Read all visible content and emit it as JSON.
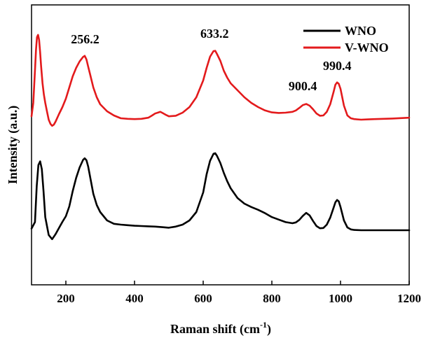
{
  "chart_data": {
    "type": "line",
    "xlabel": "Raman shift (cm",
    "xlabel_sup": "-1",
    "xlabel_close": ")",
    "ylabel": "Intensity (a.u.)",
    "xlim": [
      100,
      1200
    ],
    "ylim": [
      0,
      100
    ],
    "x_ticks": [
      200,
      400,
      600,
      800,
      1000,
      1200
    ],
    "y_ticks_shown": false,
    "legend": {
      "placement": "top-right"
    },
    "grid": false,
    "series": [
      {
        "name": "WNO",
        "color": "#000000",
        "x": [
          100,
          110,
          115,
          120,
          125,
          130,
          135,
          140,
          150,
          160,
          170,
          180,
          190,
          200,
          210,
          220,
          230,
          240,
          250,
          255,
          260,
          265,
          270,
          280,
          290,
          300,
          320,
          340,
          360,
          380,
          400,
          420,
          440,
          460,
          480,
          500,
          520,
          540,
          560,
          580,
          600,
          610,
          620,
          630,
          635,
          640,
          650,
          660,
          670,
          680,
          700,
          720,
          740,
          760,
          780,
          800,
          820,
          840,
          860,
          870,
          880,
          890,
          900,
          910,
          920,
          930,
          940,
          950,
          960,
          970,
          980,
          985,
          990,
          995,
          1000,
          1010,
          1020,
          1030,
          1040,
          1060,
          1080,
          1100,
          1150,
          1200
        ],
        "values": [
          20.1,
          22.4,
          35.2,
          42.8,
          44.1,
          41.3,
          33.5,
          24.2,
          17.8,
          16.3,
          18.1,
          20.3,
          22.5,
          24.5,
          28.0,
          33.5,
          38.2,
          41.9,
          44.6,
          45.2,
          44.5,
          42.3,
          39.0,
          32.5,
          28.5,
          26.0,
          23.0,
          21.8,
          21.5,
          21.3,
          21.1,
          21.0,
          20.9,
          20.8,
          20.6,
          20.4,
          20.8,
          21.5,
          23.0,
          26.0,
          33.0,
          39.5,
          44.3,
          46.8,
          47.0,
          46.1,
          43.5,
          40.0,
          37.0,
          34.5,
          31.0,
          29.0,
          27.8,
          26.8,
          25.6,
          24.2,
          23.3,
          22.4,
          22.0,
          22.3,
          23.2,
          24.6,
          25.7,
          24.8,
          22.8,
          21.0,
          20.2,
          20.3,
          21.5,
          24.0,
          27.6,
          29.5,
          30.3,
          29.8,
          27.8,
          23.0,
          20.5,
          19.8,
          19.6,
          19.5,
          19.5,
          19.5,
          19.5,
          19.5
        ]
      },
      {
        "name": "V-WNO",
        "color": "#e31a1c",
        "x": [
          100,
          105,
          110,
          113,
          116,
          119,
          122,
          125,
          128,
          132,
          136,
          140,
          145,
          150,
          155,
          160,
          165,
          170,
          180,
          190,
          200,
          210,
          220,
          230,
          240,
          250,
          255,
          260,
          265,
          270,
          280,
          290,
          300,
          320,
          340,
          360,
          380,
          400,
          420,
          440,
          450,
          460,
          470,
          475,
          480,
          490,
          500,
          520,
          540,
          560,
          580,
          600,
          610,
          620,
          630,
          635,
          640,
          650,
          660,
          670,
          680,
          700,
          720,
          740,
          760,
          780,
          800,
          820,
          840,
          860,
          870,
          880,
          890,
          900,
          910,
          920,
          930,
          940,
          950,
          960,
          970,
          980,
          985,
          990,
          995,
          1000,
          1010,
          1020,
          1030,
          1040,
          1060,
          1080,
          1100,
          1150,
          1200
        ],
        "values": [
          60.2,
          65.0,
          76.5,
          84.0,
          88.5,
          89.3,
          87.5,
          83.0,
          78.0,
          72.0,
          68.0,
          65.0,
          62.0,
          59.0,
          57.5,
          56.8,
          57.2,
          58.3,
          61.0,
          63.5,
          66.5,
          70.5,
          74.5,
          77.5,
          79.8,
          81.4,
          81.8,
          80.5,
          78.0,
          75.5,
          70.5,
          67.0,
          64.5,
          62.0,
          60.5,
          59.5,
          59.3,
          59.2,
          59.3,
          59.7,
          60.4,
          61.2,
          61.6,
          61.8,
          61.5,
          60.8,
          60.2,
          60.4,
          61.5,
          63.5,
          67.0,
          73.0,
          77.5,
          81.5,
          83.5,
          83.6,
          82.5,
          80.0,
          76.5,
          74.0,
          72.0,
          69.5,
          67.0,
          65.0,
          63.5,
          62.3,
          61.6,
          61.4,
          61.5,
          61.8,
          62.3,
          63.2,
          64.2,
          64.6,
          64.0,
          62.7,
          61.2,
          60.4,
          60.5,
          61.8,
          64.5,
          69.0,
          71.5,
          72.3,
          71.8,
          70.0,
          64.0,
          60.5,
          59.5,
          59.2,
          59.0,
          59.1,
          59.2,
          59.4,
          59.7
        ]
      }
    ],
    "annotations": [
      {
        "text": "256.2",
        "x": 256.2,
        "y": 86.3
      },
      {
        "text": "633.2",
        "x": 633.2,
        "y": 88.2
      },
      {
        "text": "900.4",
        "x": 890,
        "y": 69.5
      },
      {
        "text": "990.4",
        "x": 990.4,
        "y": 76.8
      }
    ]
  }
}
